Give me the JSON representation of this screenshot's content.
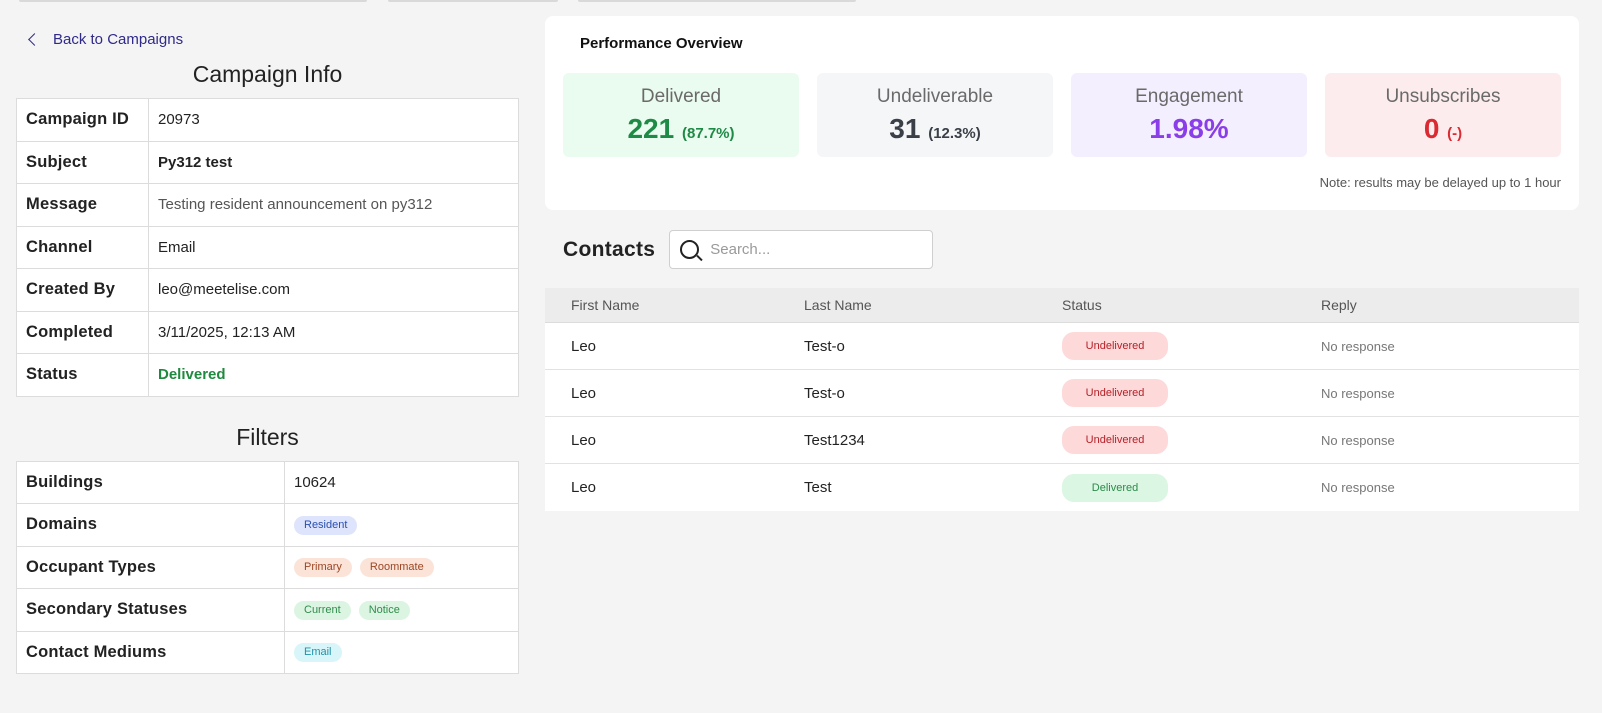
{
  "nav": {
    "back_label": "Back to Campaigns"
  },
  "campaign_info": {
    "title": "Campaign Info",
    "rows": [
      {
        "label": "Campaign ID",
        "value": "20973"
      },
      {
        "label": "Subject",
        "value": "Py312 test"
      },
      {
        "label": "Message",
        "value": "Testing resident announcement on py312"
      },
      {
        "label": "Channel",
        "value": "Email"
      },
      {
        "label": "Created By",
        "value": "leo@meetelise.com"
      },
      {
        "label": "Completed",
        "value": "3/11/2025, 12:13 AM"
      },
      {
        "label": "Status",
        "value": "Delivered"
      }
    ]
  },
  "filters": {
    "title": "Filters",
    "buildings_label": "Buildings",
    "buildings_value": "10624",
    "domains_label": "Domains",
    "domains": [
      "Resident"
    ],
    "occupant_types_label": "Occupant Types",
    "occupant_types": [
      "Primary",
      "Roommate"
    ],
    "secondary_statuses_label": "Secondary Statuses",
    "secondary_statuses": [
      "Current",
      "Notice"
    ],
    "contact_mediums_label": "Contact Mediums",
    "contact_mediums": [
      "Email"
    ]
  },
  "performance": {
    "title": "Performance Overview",
    "delivered": {
      "label": "Delivered",
      "value": "221",
      "pct": "(87.7%)"
    },
    "undeliverable": {
      "label": "Undeliverable",
      "value": "31",
      "pct": "(12.3%)"
    },
    "engagement": {
      "label": "Engagement",
      "value": "1.98%"
    },
    "unsubscribes": {
      "label": "Unsubscribes",
      "value": "0",
      "pct": "(-)"
    },
    "note": "Note: results may be delayed up to 1 hour"
  },
  "contacts": {
    "title": "Contacts",
    "search_placeholder": "Search...",
    "columns": [
      "First Name",
      "Last Name",
      "Status",
      "Reply"
    ],
    "rows": [
      {
        "first": "Leo",
        "last": "Test-o",
        "status": "Undelivered",
        "reply": "No response"
      },
      {
        "first": "Leo",
        "last": "Test-o",
        "status": "Undelivered",
        "reply": "No response"
      },
      {
        "first": "Leo",
        "last": "Test1234",
        "status": "Undelivered",
        "reply": "No response"
      },
      {
        "first": "Leo",
        "last": "Test",
        "status": "Delivered",
        "reply": "No response"
      }
    ]
  },
  "colors": {
    "delivered_green": "#1d8a45",
    "engagement_purple": "#8a3ee8",
    "unsubscribes_red": "#dc2a32",
    "link_indigo": "#2f2a8a"
  },
  "icons": {
    "back": "chevron-left-icon",
    "search": "search-icon"
  }
}
